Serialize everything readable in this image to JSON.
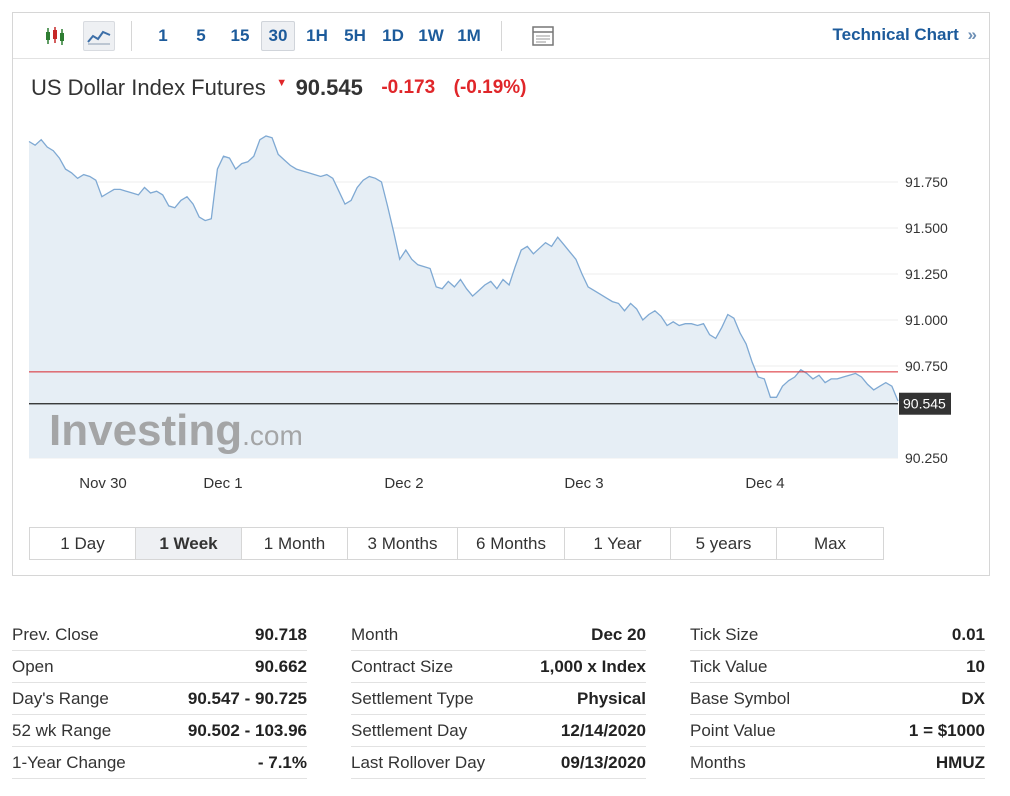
{
  "toolbar": {
    "timeframes": [
      "1",
      "5",
      "15",
      "30",
      "1H",
      "5H",
      "1D",
      "1W",
      "1M"
    ],
    "active_timeframe": "30",
    "technical_chart_label": "Technical Chart",
    "technical_chart_arrow": "»"
  },
  "header": {
    "name": "US Dollar Index Futures",
    "price": "90.545",
    "change": "-0.173",
    "change_pct": "(-0.19%)",
    "down_color": "#e0262a"
  },
  "ranges": {
    "items": [
      "1 Day",
      "1 Week",
      "1 Month",
      "3 Months",
      "6 Months",
      "1 Year",
      "5 years",
      "Max"
    ],
    "active": "1 Week"
  },
  "chart_data": {
    "type": "area",
    "x_labels": [
      "Nov 30",
      "Dec 1",
      "Dec 2",
      "Dec 3",
      "Dec 4"
    ],
    "y_ticks": [
      91.75,
      91.5,
      91.25,
      91.0,
      90.75,
      90.25
    ],
    "y_tick_labels": [
      "91.750",
      "91.500",
      "91.250",
      "91.000",
      "90.750",
      "90.250"
    ],
    "ylim": [
      90.25,
      92.0
    ],
    "prev_close_line": 90.718,
    "last_price_line": 90.545,
    "last_price_label": "90.545",
    "watermark_main": "Investing",
    "watermark_suffix": ".com",
    "line_color": "#7fa9d3",
    "fill_color": "#e6eef5",
    "prev_close_color": "#d9262c",
    "values": [
      91.97,
      91.95,
      91.98,
      91.94,
      91.92,
      91.88,
      91.82,
      91.8,
      91.77,
      91.79,
      91.78,
      91.76,
      91.67,
      91.69,
      91.71,
      91.71,
      91.7,
      91.69,
      91.68,
      91.72,
      91.69,
      91.7,
      91.68,
      91.62,
      91.61,
      91.65,
      91.67,
      91.63,
      91.56,
      91.54,
      91.55,
      91.82,
      91.89,
      91.88,
      91.82,
      91.85,
      91.86,
      91.89,
      91.98,
      92.0,
      91.99,
      91.9,
      91.87,
      91.84,
      91.82,
      91.81,
      91.8,
      91.79,
      91.78,
      91.79,
      91.77,
      91.7,
      91.63,
      91.65,
      91.72,
      91.76,
      91.78,
      91.77,
      91.75,
      91.62,
      91.48,
      91.33,
      91.38,
      91.33,
      91.3,
      91.29,
      91.28,
      91.18,
      91.17,
      91.21,
      91.18,
      91.22,
      91.17,
      91.13,
      91.16,
      91.19,
      91.21,
      91.17,
      91.22,
      91.19,
      91.29,
      91.38,
      91.4,
      91.36,
      91.39,
      91.42,
      91.4,
      91.45,
      91.41,
      91.37,
      91.33,
      91.25,
      91.18,
      91.16,
      91.14,
      91.12,
      91.1,
      91.09,
      91.05,
      91.09,
      91.06,
      91.0,
      91.03,
      91.05,
      91.02,
      90.97,
      90.99,
      90.97,
      90.98,
      90.98,
      90.97,
      90.98,
      90.92,
      90.9,
      90.96,
      91.03,
      91.01,
      90.93,
      90.87,
      90.77,
      90.69,
      90.68,
      90.58,
      90.58,
      90.64,
      90.67,
      90.69,
      90.73,
      90.71,
      90.68,
      90.7,
      90.66,
      90.68,
      90.68,
      90.69,
      90.7,
      90.71,
      90.69,
      90.65,
      90.62,
      90.64,
      90.66,
      90.64,
      90.56
    ]
  },
  "stats": {
    "col1": [
      {
        "label": "Prev. Close",
        "value": "90.718"
      },
      {
        "label": "Open",
        "value": "90.662"
      },
      {
        "label": "Day's Range",
        "value": "90.547 - 90.725"
      },
      {
        "label": "52 wk Range",
        "value": "90.502 - 103.96"
      },
      {
        "label": "1-Year Change",
        "value": "- 7.1%"
      }
    ],
    "col2": [
      {
        "label": "Month",
        "value": "Dec 20"
      },
      {
        "label": "Contract Size",
        "value": "1,000 x Index"
      },
      {
        "label": "Settlement Type",
        "value": "Physical"
      },
      {
        "label": "Settlement Day",
        "value": "12/14/2020"
      },
      {
        "label": "Last Rollover Day",
        "value": "09/13/2020"
      }
    ],
    "col3": [
      {
        "label": "Tick Size",
        "value": "0.01"
      },
      {
        "label": "Tick Value",
        "value": "10"
      },
      {
        "label": "Base Symbol",
        "value": "DX"
      },
      {
        "label": "Point Value",
        "value": "1 = $1000"
      },
      {
        "label": "Months",
        "value": "HMUZ"
      }
    ]
  }
}
